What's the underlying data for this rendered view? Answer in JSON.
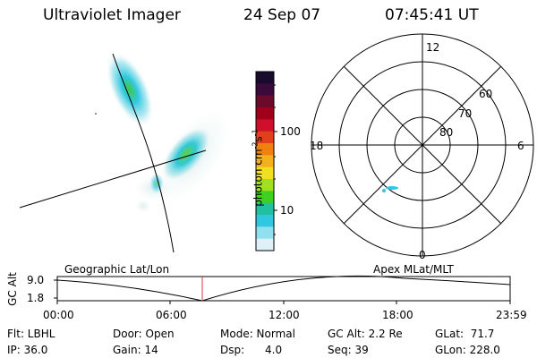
{
  "header": {
    "title": "Ultraviolet Imager",
    "date": "24 Sep 07",
    "time": "07:45:41 UT"
  },
  "colorbar": {
    "unit_prefix": "photon cm",
    "unit_exp1": "-2",
    "unit_mid": "s",
    "unit_exp2": "-1",
    "ticks": [
      "100",
      "10"
    ],
    "colors": [
      "#1a0a2e",
      "#3a0a3a",
      "#6b0a2a",
      "#a0001a",
      "#d0102a",
      "#e0401a",
      "#f08010",
      "#f5b020",
      "#f0e020",
      "#a0e020",
      "#40d020",
      "#20c0a0",
      "#30c8e0",
      "#90e0f0",
      "#e0f0f8"
    ]
  },
  "polar": {
    "mlt_labels": {
      "top": "12",
      "left": "18",
      "right": "6",
      "bottom": "0"
    },
    "lat_labels": [
      "60",
      "70",
      "80"
    ]
  },
  "timeline": {
    "y_axis_label": "GC Alt",
    "y_ticks": [
      "9.0",
      "1.8"
    ],
    "left_label": "Geographic Lat/Lon",
    "right_label": "Apex MLat/MLT",
    "x_ticks": [
      "00:00",
      "06:00",
      "12:00",
      "18:00",
      "23:59"
    ],
    "current_time_fraction": 0.3
  },
  "info": {
    "flt": "Flt: LBHL",
    "ip": "IP: 36.0",
    "door": "Door: Open",
    "gain": "Gain: 14",
    "mode": "Mode: Normal",
    "dsp": "Dsp:      4.0",
    "gc_alt": "GC Alt: 2.2 Re",
    "seq": "Seq: 39",
    "glat": "GLat:  71.7",
    "glon": "GLon: 228.0"
  },
  "colors": {
    "marker": "#e0304a",
    "aurora_cyan": "#30c8e0",
    "aurora_green": "#40c840"
  }
}
